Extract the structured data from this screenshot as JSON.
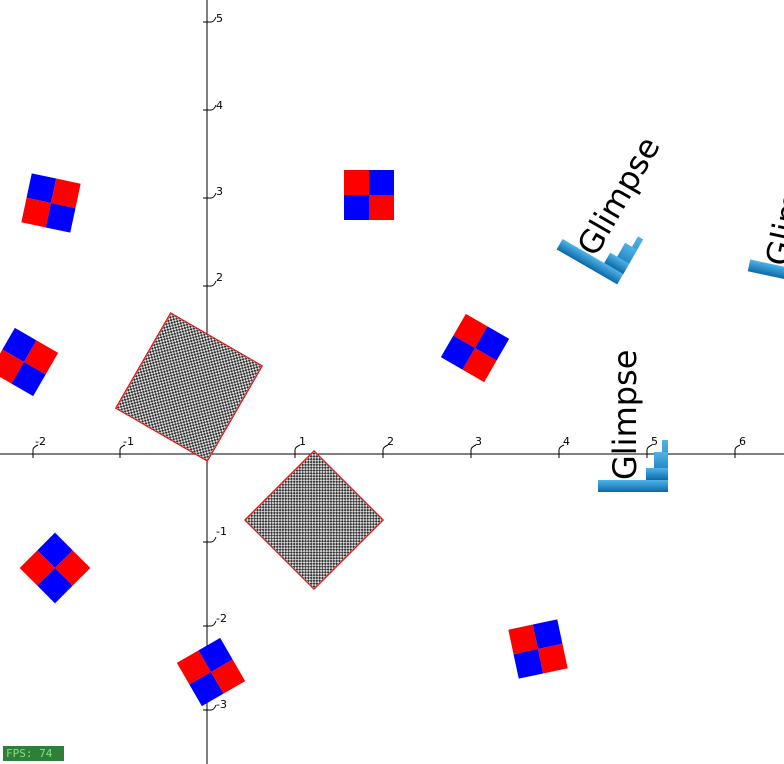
{
  "plot": {
    "x_ticks": [
      "-2",
      "-1",
      "1",
      "2",
      "3",
      "4",
      "5",
      "6"
    ],
    "y_ticks": [
      "5",
      "4",
      "3",
      "2",
      "1",
      "-1",
      "-2",
      "-3"
    ]
  },
  "glimpse": {
    "label": "Glimpse",
    "gradient_top": "#4fb3e8",
    "gradient_bottom": "#0b6aa8"
  },
  "checker": {
    "color_a": "#ff0000",
    "color_b": "#0000ff"
  },
  "hatched": {
    "stroke": "#ff0000"
  },
  "status": {
    "fps_text": "FPS: 74"
  }
}
